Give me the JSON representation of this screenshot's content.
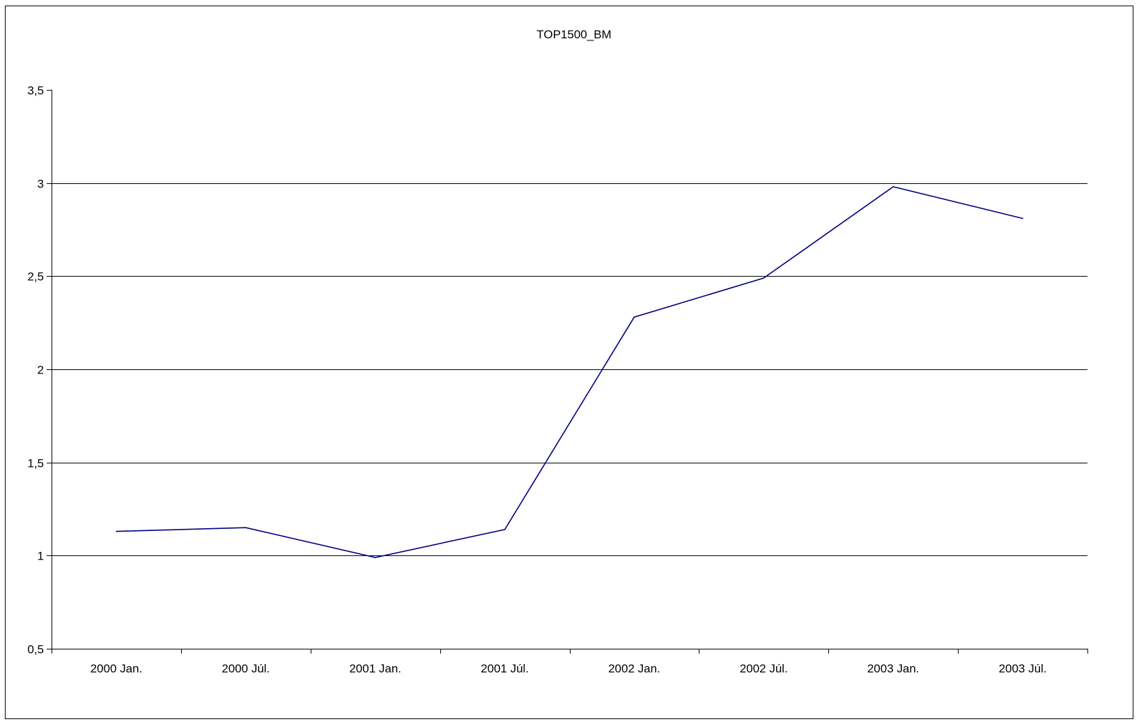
{
  "chart_data": {
    "type": "line",
    "title": "TOP1500_BM",
    "xlabel": "",
    "ylabel": "",
    "categories": [
      "2000 Jan.",
      "2000 Júl.",
      "2001 Jan.",
      "2001 Júl.",
      "2002 Jan.",
      "2002 Júl.",
      "2003 Jan.",
      "2003 Júl."
    ],
    "series": [
      {
        "values": [
          1.13,
          1.15,
          0.99,
          1.14,
          2.28,
          2.49,
          2.98,
          2.81
        ],
        "color": "#000080"
      }
    ],
    "ylim": [
      0.5,
      3.5
    ],
    "yticks": [
      0.5,
      1,
      1.5,
      2,
      2.5,
      3,
      3.5
    ],
    "ytick_labels": [
      "0,5",
      "1",
      "1,5",
      "2",
      "2,5",
      "3",
      "3,5"
    ],
    "grid": "horizontal",
    "legend": "none",
    "gridline_color": "#000000",
    "background": "#ffffff"
  }
}
